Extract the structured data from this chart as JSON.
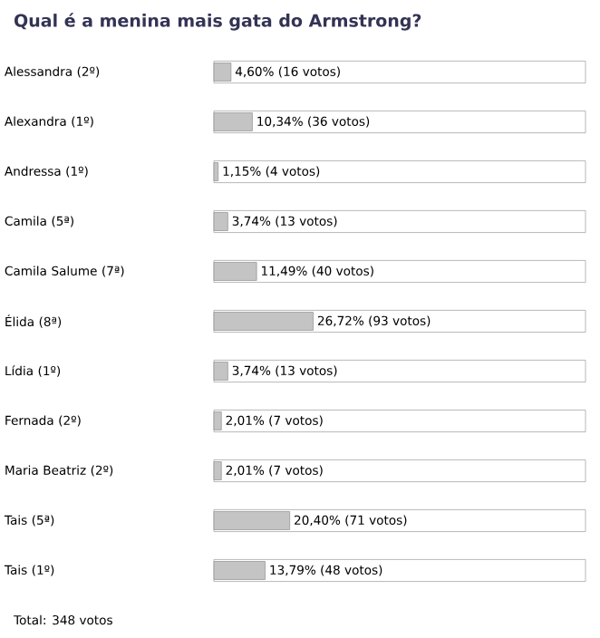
{
  "chart_data": {
    "type": "bar",
    "orientation": "horizontal",
    "title": "Qual é a menina mais gata do Armstrong?",
    "categories": [
      "Alessandra (2º)",
      "Alexandra (1º)",
      "Andressa (1º)",
      "Camila (5ª)",
      "Camila Salume (7ª)",
      "Élida (8ª)",
      "Lídia (1º)",
      "Fernada (2º)",
      "Maria Beatriz (2º)",
      "Tais (5ª)",
      "Tais (1º)"
    ],
    "values": [
      4.6,
      10.34,
      1.15,
      3.74,
      11.49,
      26.72,
      3.74,
      2.01,
      2.01,
      20.4,
      13.79
    ],
    "value_labels": [
      "4,60% (16 votos)",
      "10,34% (36 votos)",
      "1,15% (4 votos)",
      "3,74% (13 votos)",
      "11,49% (40 votos)",
      "26,72% (93 votos)",
      "3,74% (13 votos)",
      "2,01% (7 votos)",
      "2,01% (7 votos)",
      "20,40% (71 votos)",
      "13,79% (48 votos)"
    ],
    "color": "#c4c4c4",
    "xlim": [
      0,
      100
    ],
    "tick_labels": "y",
    "annotations": [
      "Total: 348 votos"
    ]
  }
}
